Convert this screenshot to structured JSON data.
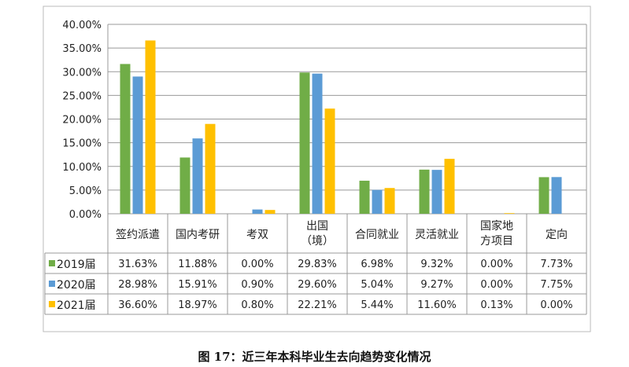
{
  "chart_data": {
    "type": "bar",
    "title": "",
    "categories": [
      "签约派遣",
      "国内考研",
      "考双",
      "出国\n（境）",
      "合同就业",
      "灵活就业",
      "国家地\n方项目",
      "定向"
    ],
    "series": [
      {
        "name": "2019届",
        "color": "#70ad47",
        "values": [
          31.63,
          11.88,
          0.0,
          29.83,
          6.98,
          9.32,
          0.0,
          7.73
        ],
        "labels": [
          "31.63%",
          "11.88%",
          "0.00%",
          "29.83%",
          "6.98%",
          "9.32%",
          "0.00%",
          "7.73%"
        ]
      },
      {
        "name": "2020届",
        "color": "#5b9bd5",
        "values": [
          28.98,
          15.91,
          0.9,
          29.6,
          5.04,
          9.27,
          0.0,
          7.75
        ],
        "labels": [
          "28.98%",
          "15.91%",
          "0.90%",
          "29.60%",
          "5.04%",
          "9.27%",
          "0.00%",
          "7.75%"
        ]
      },
      {
        "name": "2021届",
        "color": "#ffc000",
        "values": [
          36.6,
          18.97,
          0.8,
          22.21,
          5.44,
          11.6,
          0.13,
          0.0
        ],
        "labels": [
          "36.60%",
          "18.97%",
          "0.80%",
          "22.21%",
          "5.44%",
          "11.60%",
          "0.13%",
          "0.00%"
        ]
      }
    ],
    "ylim": [
      0,
      40
    ],
    "yticks": [
      "0.00%",
      "5.00%",
      "10.00%",
      "15.00%",
      "20.00%",
      "25.00%",
      "30.00%",
      "35.00%",
      "40.00%"
    ],
    "grid": true,
    "legend": "data-table"
  },
  "caption": "图 17：近三年本科毕业生去向趋势变化情况"
}
